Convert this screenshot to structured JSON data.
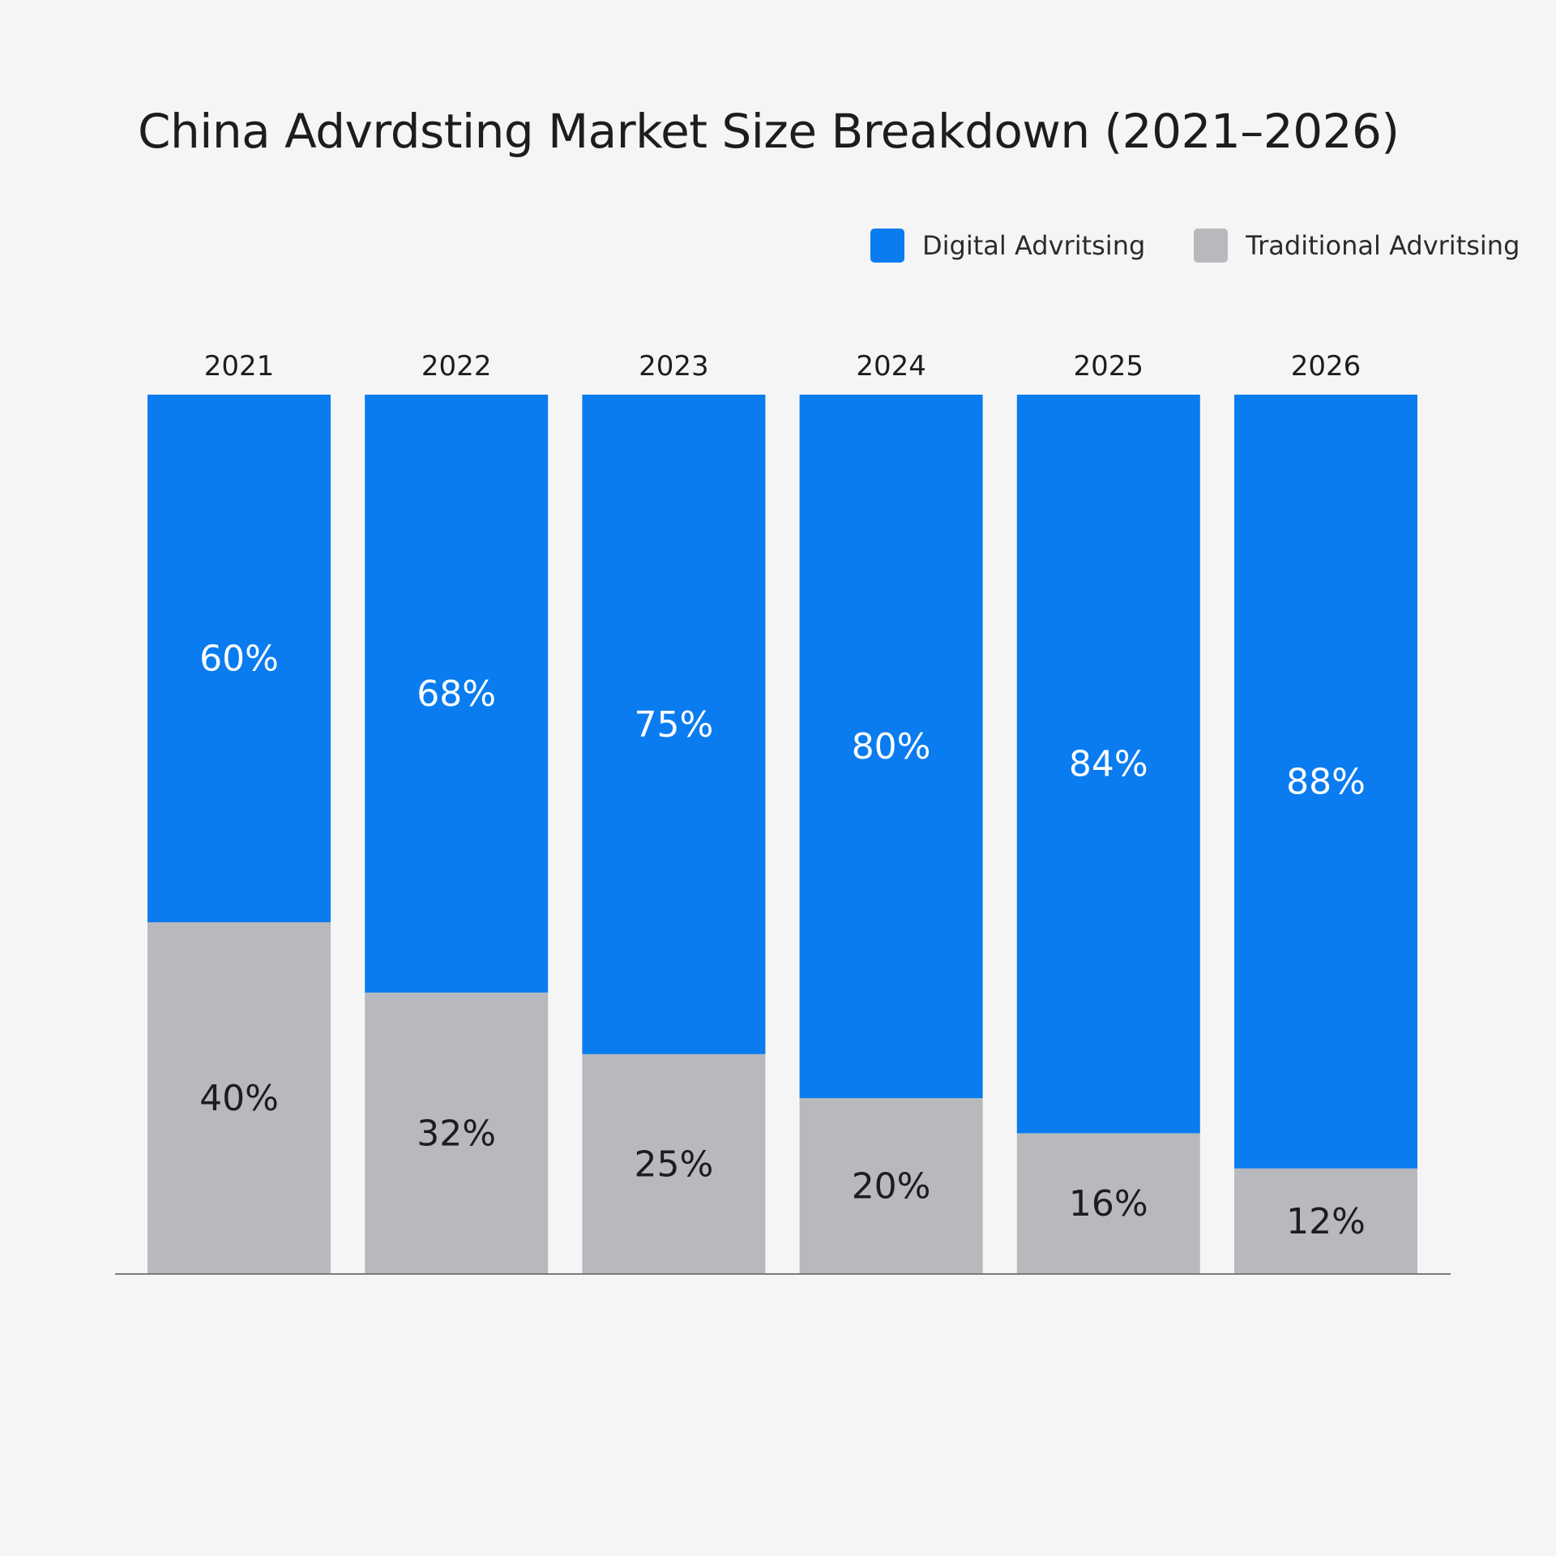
{
  "chart_data": {
    "type": "bar",
    "stacked": true,
    "title": "China Advrdsting Market Size Breakdown (2021–2026)",
    "categories": [
      "2021",
      "2022",
      "2023",
      "2024",
      "2025",
      "2026"
    ],
    "series": [
      {
        "name": "Digital Advritsing",
        "color": "#0a7cf0",
        "values": [
          60,
          68,
          75,
          80,
          84,
          88
        ],
        "labels": [
          "60%",
          "68%",
          "75%",
          "80%",
          "84%",
          "88%"
        ]
      },
      {
        "name": "Traditional Advritsing",
        "color": "#b8b9bd",
        "values": [
          40,
          32,
          25,
          20,
          16,
          12
        ],
        "labels": [
          "40%",
          "32%",
          "25%",
          "20%",
          "16%",
          "12%"
        ]
      }
    ],
    "legend_position": "top-right",
    "grid": false,
    "baseline_color": "#7a7a7a"
  }
}
